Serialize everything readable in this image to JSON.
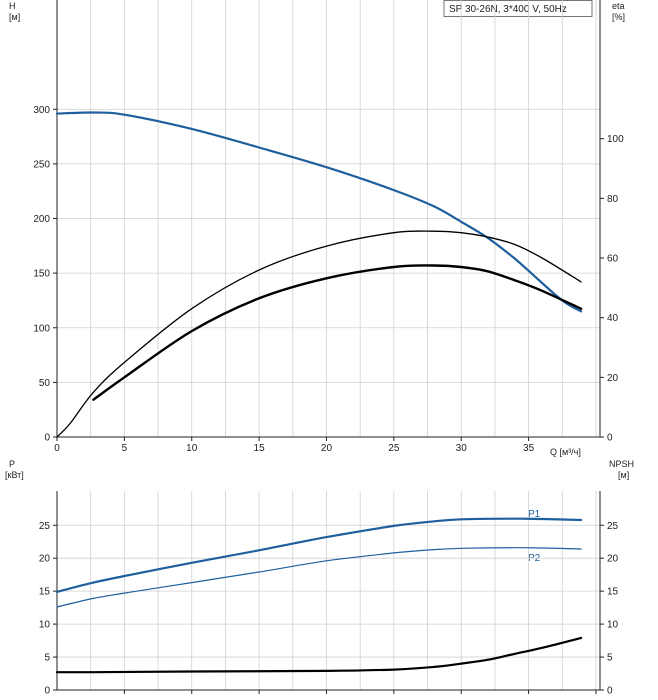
{
  "title": "SP 30-26N, 3*400 V, 50Hz",
  "colors": {
    "blue": "#1f5f9e",
    "black": "#000000",
    "grid": "#d0d0d0"
  },
  "chart_data": [
    {
      "type": "line",
      "panel": "top",
      "x_axis": {
        "label": "Q [м³/ч]",
        "ticks": [
          "0",
          "5",
          "10",
          "15",
          "20",
          "25",
          "30",
          "35"
        ],
        "lim": [
          0,
          40.3
        ]
      },
      "y_left": {
        "label_top": "H",
        "label_unit": "[м]",
        "ticks": [
          "0",
          "50",
          "100",
          "150",
          "200",
          "250",
          "300"
        ],
        "lim": [
          0,
          400
        ]
      },
      "y_right": {
        "label_top": "eta",
        "label_unit": "[%]",
        "ticks": [
          "0",
          "20",
          "40",
          "60",
          "80",
          "100"
        ],
        "lim": [
          0,
          146.5
        ]
      },
      "grid": true,
      "series": [
        {
          "axis": "left",
          "color": "blue",
          "width": 2.2,
          "points": [
            [
              0,
              296
            ],
            [
              2.7,
              297
            ],
            [
              5,
              295
            ],
            [
              10,
              282
            ],
            [
              15,
              265
            ],
            [
              20,
              247
            ],
            [
              25,
              226
            ],
            [
              28,
              211
            ],
            [
              30,
              197
            ],
            [
              32,
              182
            ],
            [
              34,
              163
            ],
            [
              36,
              141
            ],
            [
              37.6,
              124
            ],
            [
              38.9,
              115
            ]
          ]
        },
        {
          "axis": "right",
          "color": "black",
          "width": 1.3,
          "points": [
            [
              0,
              0
            ],
            [
              1,
              4.7
            ],
            [
              2.7,
              15
            ],
            [
              5,
              25
            ],
            [
              10,
              43
            ],
            [
              15,
              56
            ],
            [
              20,
              64
            ],
            [
              25,
              68.5
            ],
            [
              28,
              69
            ],
            [
              30,
              68.5
            ],
            [
              32,
              67
            ],
            [
              34,
              64.5
            ],
            [
              36,
              60
            ],
            [
              38.9,
              52
            ]
          ]
        },
        {
          "axis": "right",
          "color": "black",
          "width": 2.4,
          "points": [
            [
              2.7,
              12.5
            ],
            [
              5,
              20
            ],
            [
              10,
              35.5
            ],
            [
              15,
              46.5
            ],
            [
              20,
              53.2
            ],
            [
              25,
              57
            ],
            [
              28,
              57.5
            ],
            [
              30,
              57
            ],
            [
              32,
              55.5
            ],
            [
              34,
              52.5
            ],
            [
              36,
              49
            ],
            [
              38.9,
              43
            ]
          ]
        }
      ]
    },
    {
      "type": "line",
      "panel": "bottom",
      "x_axis": {
        "lim": [
          0,
          40.3
        ]
      },
      "y_left": {
        "label_top": "P",
        "label_unit": "[кВт]",
        "ticks": [
          "0",
          "5",
          "10",
          "15",
          "20",
          "25"
        ],
        "lim": [
          0,
          30.2
        ]
      },
      "y_right": {
        "label_top": "NPSH",
        "label_unit": "[м]",
        "ticks": [
          "0",
          "5",
          "10",
          "15",
          "20",
          "25"
        ],
        "lim": [
          0,
          30.2
        ]
      },
      "grid": true,
      "series": [
        {
          "name": "P1",
          "axis": "left",
          "color": "blue",
          "width": 2.2,
          "points": [
            [
              0,
              14.9
            ],
            [
              2.7,
              16.3
            ],
            [
              5,
              17.3
            ],
            [
              10,
              19.3
            ],
            [
              15,
              21.2
            ],
            [
              20,
              23.2
            ],
            [
              25,
              24.9
            ],
            [
              28,
              25.6
            ],
            [
              30,
              25.9
            ],
            [
              34,
              26.0
            ],
            [
              36,
              25.95
            ],
            [
              38.9,
              25.8
            ]
          ]
        },
        {
          "name": "P2",
          "axis": "left",
          "color": "blue",
          "width": 1.2,
          "points": [
            [
              0,
              12.6
            ],
            [
              2.7,
              13.9
            ],
            [
              5,
              14.7
            ],
            [
              10,
              16.3
            ],
            [
              15,
              17.9
            ],
            [
              20,
              19.6
            ],
            [
              25,
              20.8
            ],
            [
              28,
              21.3
            ],
            [
              30,
              21.5
            ],
            [
              34,
              21.6
            ],
            [
              36,
              21.55
            ],
            [
              38.9,
              21.4
            ]
          ]
        },
        {
          "axis": "right",
          "color": "black",
          "width": 2.2,
          "points": [
            [
              0,
              2.7
            ],
            [
              2.7,
              2.7
            ],
            [
              10,
              2.8
            ],
            [
              20,
              2.9
            ],
            [
              25,
              3.1
            ],
            [
              28,
              3.5
            ],
            [
              30,
              4.0
            ],
            [
              32,
              4.6
            ],
            [
              34,
              5.5
            ],
            [
              36,
              6.4
            ],
            [
              38.9,
              7.9
            ]
          ]
        }
      ]
    }
  ],
  "labels": {
    "top_H": "H",
    "top_H_unit": "[м]",
    "top_eta": "eta",
    "top_eta_unit": "[%]",
    "x_label": "Q [м³/ч]",
    "bot_P": "P",
    "bot_P_unit": "[кВт]",
    "bot_npsh": "NPSH",
    "bot_npsh_unit": "[м]",
    "p1": "P1",
    "p2": "P2"
  }
}
